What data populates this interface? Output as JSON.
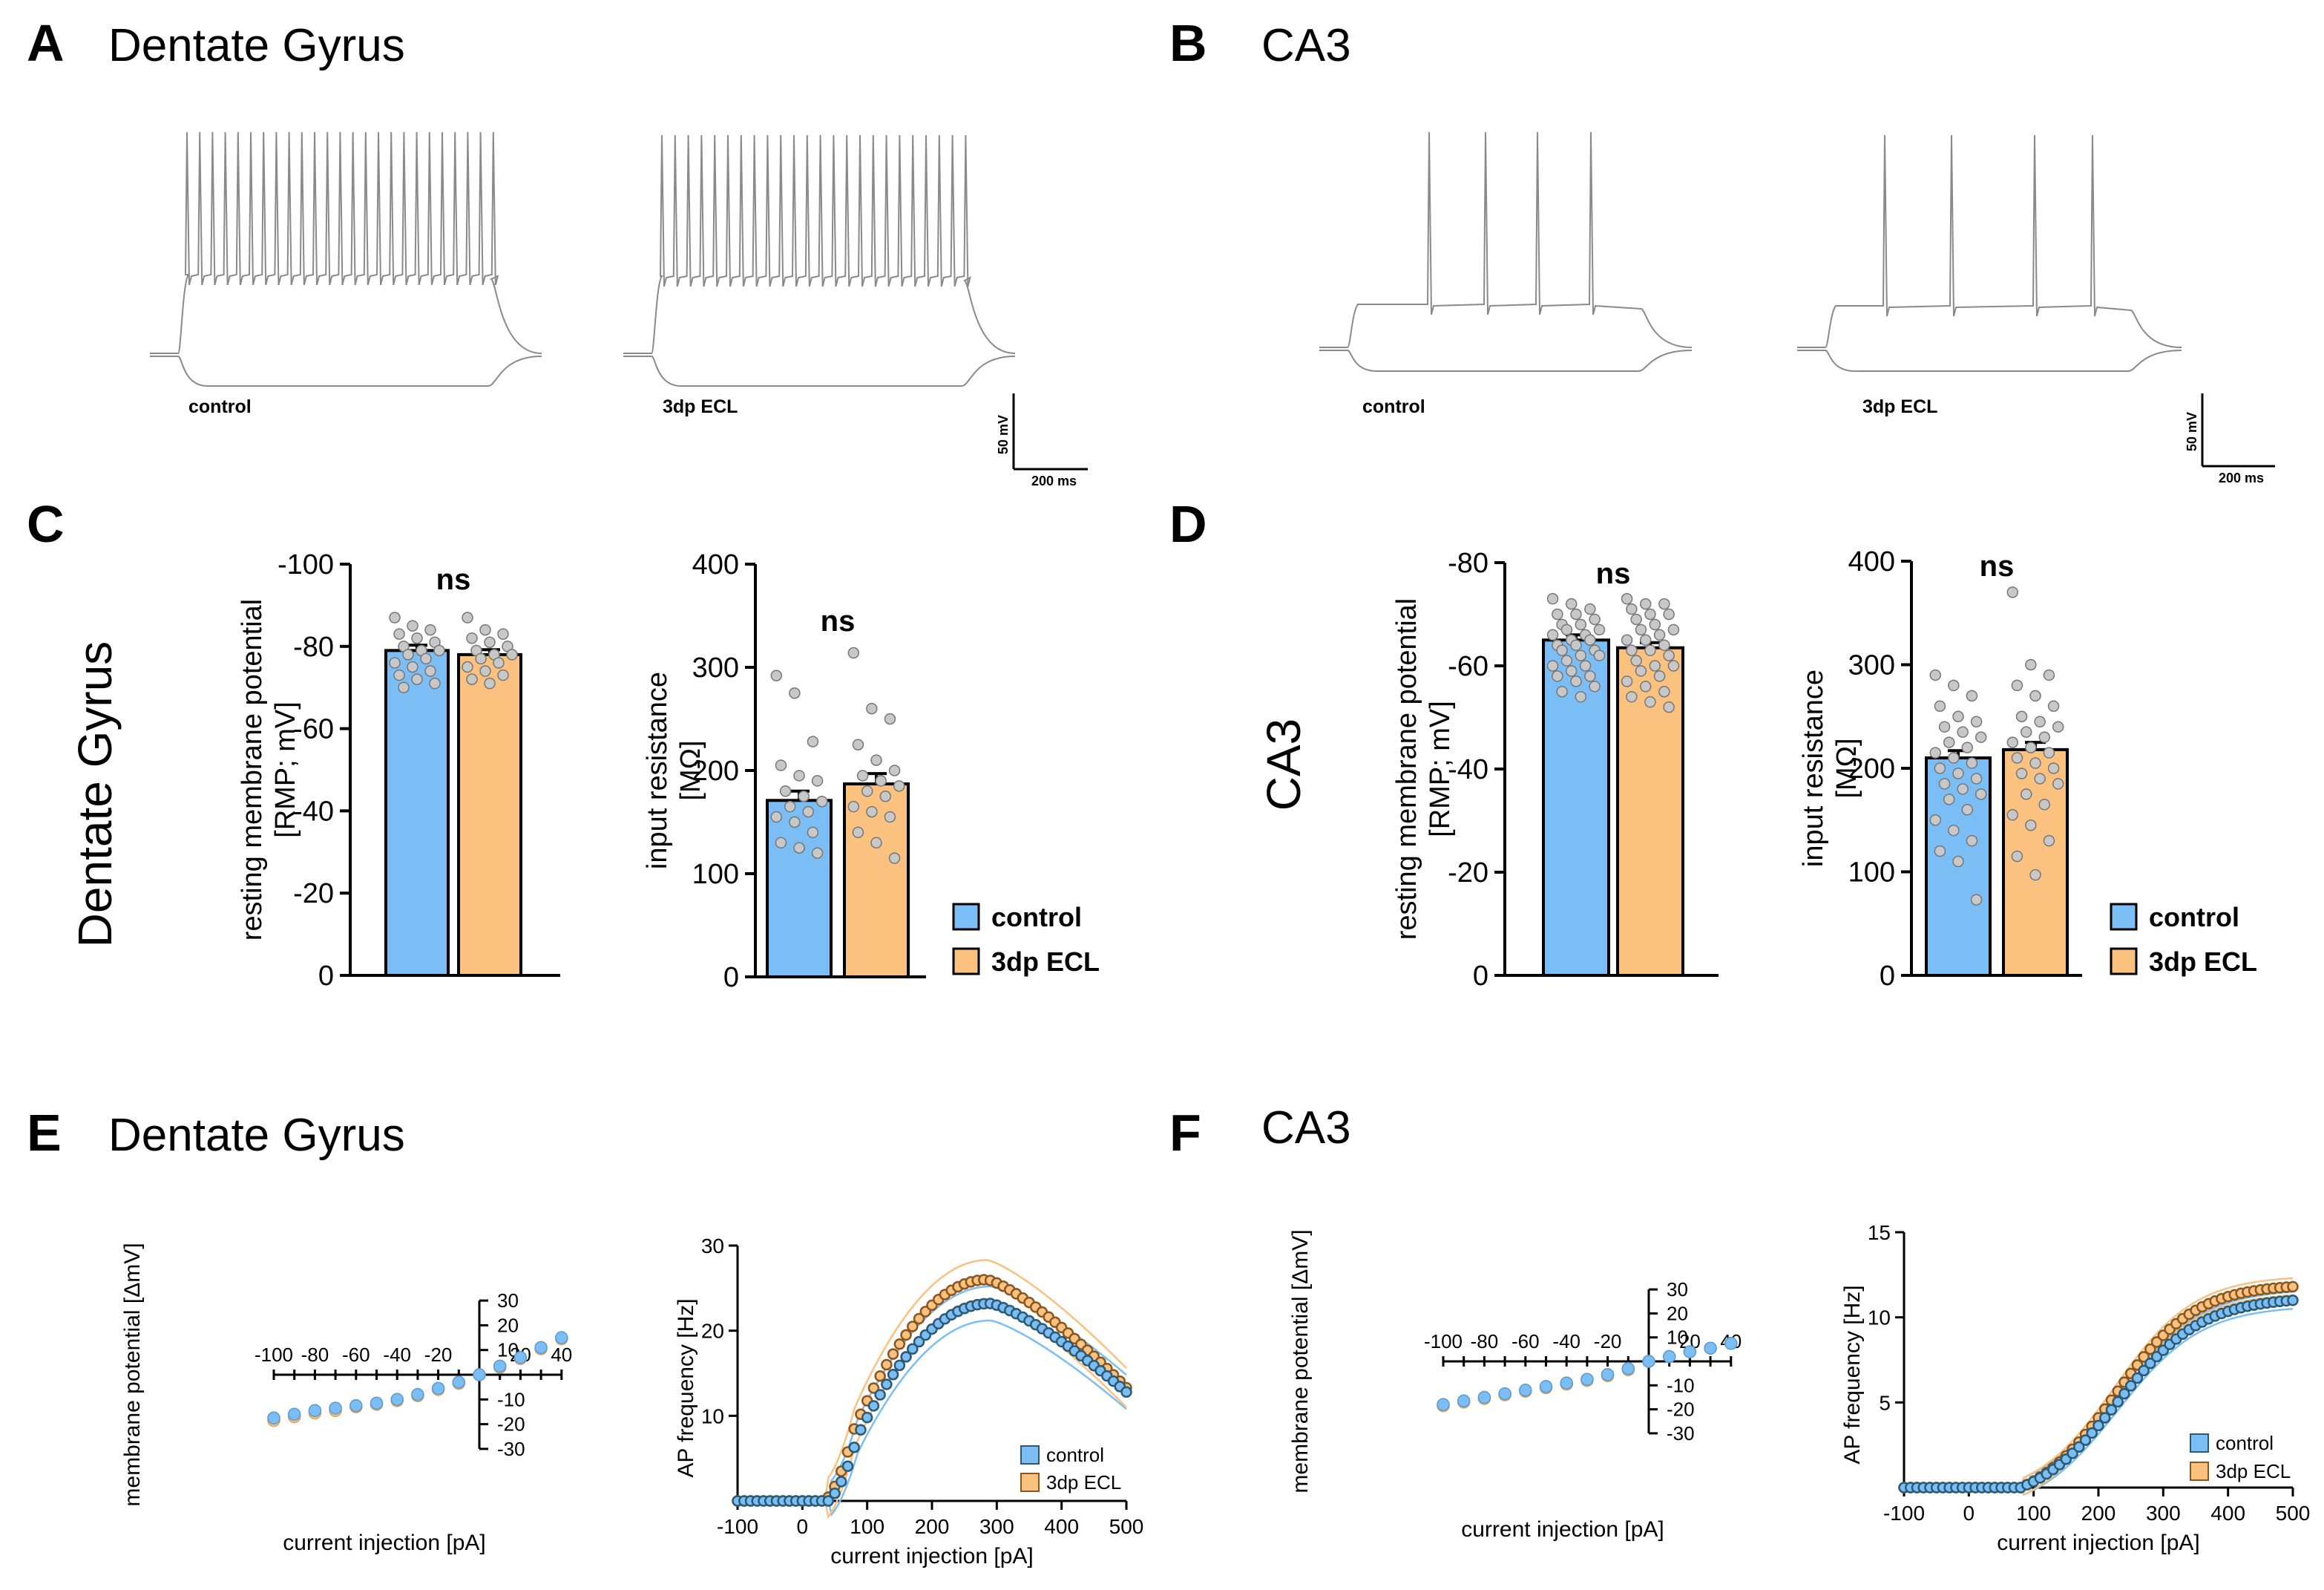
{
  "colors": {
    "control": "#7bbdf5",
    "ecl": "#fac17f",
    "control_dark": "#2b5a72",
    "ecl_dark": "#8a5620",
    "dot": "#c8c8c8",
    "trace": "#8a8a8a"
  },
  "panels": {
    "A": {
      "letter": "A",
      "title": "Dentate Gyrus",
      "label1": "control",
      "label2": "3dp ECL",
      "scale_v": "50 mV",
      "scale_t": "200 ms"
    },
    "B": {
      "letter": "B",
      "title": "CA3",
      "label1": "control",
      "label2": "3dp ECL",
      "scale_v": "50 mV",
      "scale_t": "200 ms"
    },
    "C": {
      "letter": "C",
      "title": "Dentate Gyrus"
    },
    "D": {
      "letter": "D",
      "title": "CA3"
    },
    "E": {
      "letter": "E",
      "title": "Dentate Gyrus"
    },
    "F": {
      "letter": "F",
      "title": "CA3"
    }
  },
  "legend": {
    "control": "control",
    "ecl": "3dp ECL"
  },
  "chart_data": [
    {
      "id": "C_rmp",
      "type": "bar",
      "title": "",
      "ylabel": "resting membrane potential [RMP; mV]",
      "ylim": [
        0,
        -100
      ],
      "yticks": [
        0,
        -20,
        -40,
        -60,
        -80,
        -100
      ],
      "categories": [
        "control",
        "3dp ECL"
      ],
      "values": [
        -79,
        -78
      ],
      "sem": [
        1.3,
        1.2
      ],
      "annotation": "ns",
      "points": [
        [
          -87,
          -85,
          -84,
          -83,
          -82,
          -81,
          -80,
          -79,
          -79,
          -78,
          -77,
          -76,
          -75,
          -74,
          -73,
          -72,
          -71,
          -70
        ],
        [
          -87,
          -84,
          -83,
          -82,
          -81,
          -80,
          -79,
          -78,
          -78,
          -77,
          -76,
          -75,
          -74,
          -73,
          -72,
          -71
        ]
      ]
    },
    {
      "id": "C_ir",
      "type": "bar",
      "title": "",
      "ylabel": "input resistance [MΩ]",
      "ylim": [
        0,
        400
      ],
      "yticks": [
        0,
        100,
        200,
        300,
        400
      ],
      "categories": [
        "control",
        "3dp ECL"
      ],
      "values": [
        171,
        187
      ],
      "sem": [
        9,
        10
      ],
      "annotation": "ns",
      "points": [
        [
          292,
          275,
          228,
          205,
          195,
          190,
          180,
          175,
          170,
          165,
          160,
          155,
          150,
          140,
          130,
          125,
          120
        ],
        [
          314,
          260,
          250,
          225,
          210,
          200,
          195,
          190,
          185,
          180,
          175,
          165,
          160,
          155,
          140,
          130,
          115
        ]
      ]
    },
    {
      "id": "D_rmp",
      "type": "bar",
      "title": "",
      "ylabel": "resting membrane potential [RMP; mV]",
      "ylim": [
        0,
        -80
      ],
      "yticks": [
        0,
        -20,
        -40,
        -60,
        -80
      ],
      "categories": [
        "control",
        "3dp ECL"
      ],
      "values": [
        -65,
        -63.5
      ],
      "sem": [
        1.0,
        1.0
      ],
      "annotation": "ns",
      "points": [
        [
          -73,
          -72,
          -71,
          -70,
          -70,
          -69,
          -68,
          -68,
          -67,
          -67,
          -66,
          -66,
          -65,
          -65,
          -64,
          -64,
          -63,
          -63,
          -62,
          -62,
          -61,
          -60,
          -60,
          -59,
          -58,
          -58,
          -57,
          -56,
          -55,
          -54
        ],
        [
          -73,
          -72,
          -72,
          -71,
          -70,
          -70,
          -69,
          -68,
          -67,
          -67,
          -66,
          -65,
          -65,
          -64,
          -63,
          -63,
          -62,
          -61,
          -60,
          -60,
          -59,
          -58,
          -57,
          -56,
          -55,
          -54,
          -53,
          -52
        ]
      ]
    },
    {
      "id": "D_ir",
      "type": "bar",
      "title": "",
      "ylabel": "input resistance [MΩ]",
      "ylim": [
        0,
        400
      ],
      "yticks": [
        0,
        100,
        200,
        300,
        400
      ],
      "categories": [
        "control",
        "3dp ECL"
      ],
      "values": [
        210,
        218
      ],
      "sem": [
        7,
        7
      ],
      "annotation": "ns",
      "points": [
        [
          290,
          280,
          270,
          260,
          250,
          245,
          240,
          235,
          230,
          225,
          220,
          215,
          210,
          205,
          200,
          195,
          190,
          185,
          180,
          175,
          170,
          160,
          150,
          140,
          130,
          120,
          110,
          73
        ],
        [
          370,
          300,
          290,
          280,
          270,
          260,
          250,
          245,
          240,
          235,
          230,
          225,
          220,
          215,
          210,
          205,
          200,
          195,
          190,
          185,
          175,
          165,
          155,
          145,
          130,
          115,
          97
        ]
      ]
    },
    {
      "id": "E_iv",
      "type": "scatter",
      "title": "",
      "xlabel": "current injection [pA]",
      "ylabel": "membrane potential [ΔmV]",
      "xlim": [
        -100,
        40
      ],
      "ylim": [
        -30,
        30
      ],
      "xticks": [
        -100,
        -80,
        -60,
        -40,
        -20,
        20,
        40
      ],
      "yticks": [
        -30,
        -20,
        -10,
        10,
        20,
        30
      ],
      "x": [
        -100,
        -90,
        -80,
        -70,
        -60,
        -50,
        -40,
        -30,
        -20,
        -10,
        0,
        10,
        20,
        30,
        40
      ],
      "series": [
        {
          "name": "control",
          "values": [
            -17.5,
            -16,
            -14.5,
            -13.5,
            -12.5,
            -11.5,
            -10,
            -8,
            -5.5,
            -3,
            0,
            3.5,
            7,
            11,
            15
          ]
        },
        {
          "name": "3dp ECL",
          "values": [
            -18.5,
            -17,
            -15.5,
            -14.5,
            -13,
            -12,
            -10.5,
            -8.5,
            -6,
            -3.5,
            0,
            3,
            6.5,
            10.5,
            14.5
          ]
        }
      ]
    },
    {
      "id": "E_fi",
      "type": "line",
      "title": "",
      "xlabel": "current injection [pA]",
      "ylabel": "AP frequency [Hz]",
      "xlim": [
        -100,
        500
      ],
      "ylim": [
        0,
        30
      ],
      "xticks": [
        -100,
        0,
        100,
        200,
        300,
        400,
        500
      ],
      "yticks": [
        10,
        20,
        30
      ],
      "series": [
        {
          "name": "control",
          "shape": "dg_control",
          "peak": 23.2,
          "peak_x": 290,
          "end": 12.8,
          "onset": 40,
          "band": 2
        },
        {
          "name": "3dp ECL",
          "shape": "dg_ecl",
          "peak": 26,
          "peak_x": 285,
          "end": 13.3,
          "onset": 35,
          "band": 2.3
        }
      ]
    },
    {
      "id": "F_iv",
      "type": "scatter",
      "title": "",
      "xlabel": "current injection [pA]",
      "ylabel": "membrane potential [ΔmV]",
      "xlim": [
        -100,
        40
      ],
      "ylim": [
        -30,
        30
      ],
      "xticks": [
        -100,
        -80,
        -60,
        -40,
        -20,
        20,
        40
      ],
      "yticks": [
        -30,
        -20,
        -10,
        10,
        20,
        30
      ],
      "x": [
        -100,
        -90,
        -80,
        -70,
        -60,
        -50,
        -40,
        -30,
        -20,
        -10,
        0,
        10,
        20,
        30,
        40
      ],
      "series": [
        {
          "name": "control",
          "values": [
            -18,
            -16.5,
            -15,
            -13.5,
            -12,
            -10.5,
            -9,
            -7.5,
            -5.5,
            -3,
            0,
            2,
            4,
            5.5,
            7.5
          ]
        },
        {
          "name": "3dp ECL",
          "values": [
            -18.5,
            -17,
            -15.5,
            -14,
            -12.5,
            -11,
            -9.5,
            -8,
            -6,
            -3.5,
            0,
            2,
            4,
            5.5,
            7.5
          ]
        }
      ]
    },
    {
      "id": "F_fi",
      "type": "line",
      "title": "",
      "xlabel": "current injection [pA]",
      "ylabel": "AP frequency [Hz]",
      "xlim": [
        -100,
        500
      ],
      "ylim": [
        0,
        15
      ],
      "xticks": [
        -100,
        0,
        100,
        200,
        300,
        400,
        500
      ],
      "yticks": [
        5,
        10,
        15
      ],
      "series": [
        {
          "name": "control",
          "end": 11,
          "mid": 230,
          "k": 65,
          "onset": 80,
          "band": 0.5
        },
        {
          "name": "3dp ECL",
          "end": 11.8,
          "mid": 225,
          "k": 62,
          "onset": 80,
          "band": 0.5
        }
      ]
    }
  ]
}
